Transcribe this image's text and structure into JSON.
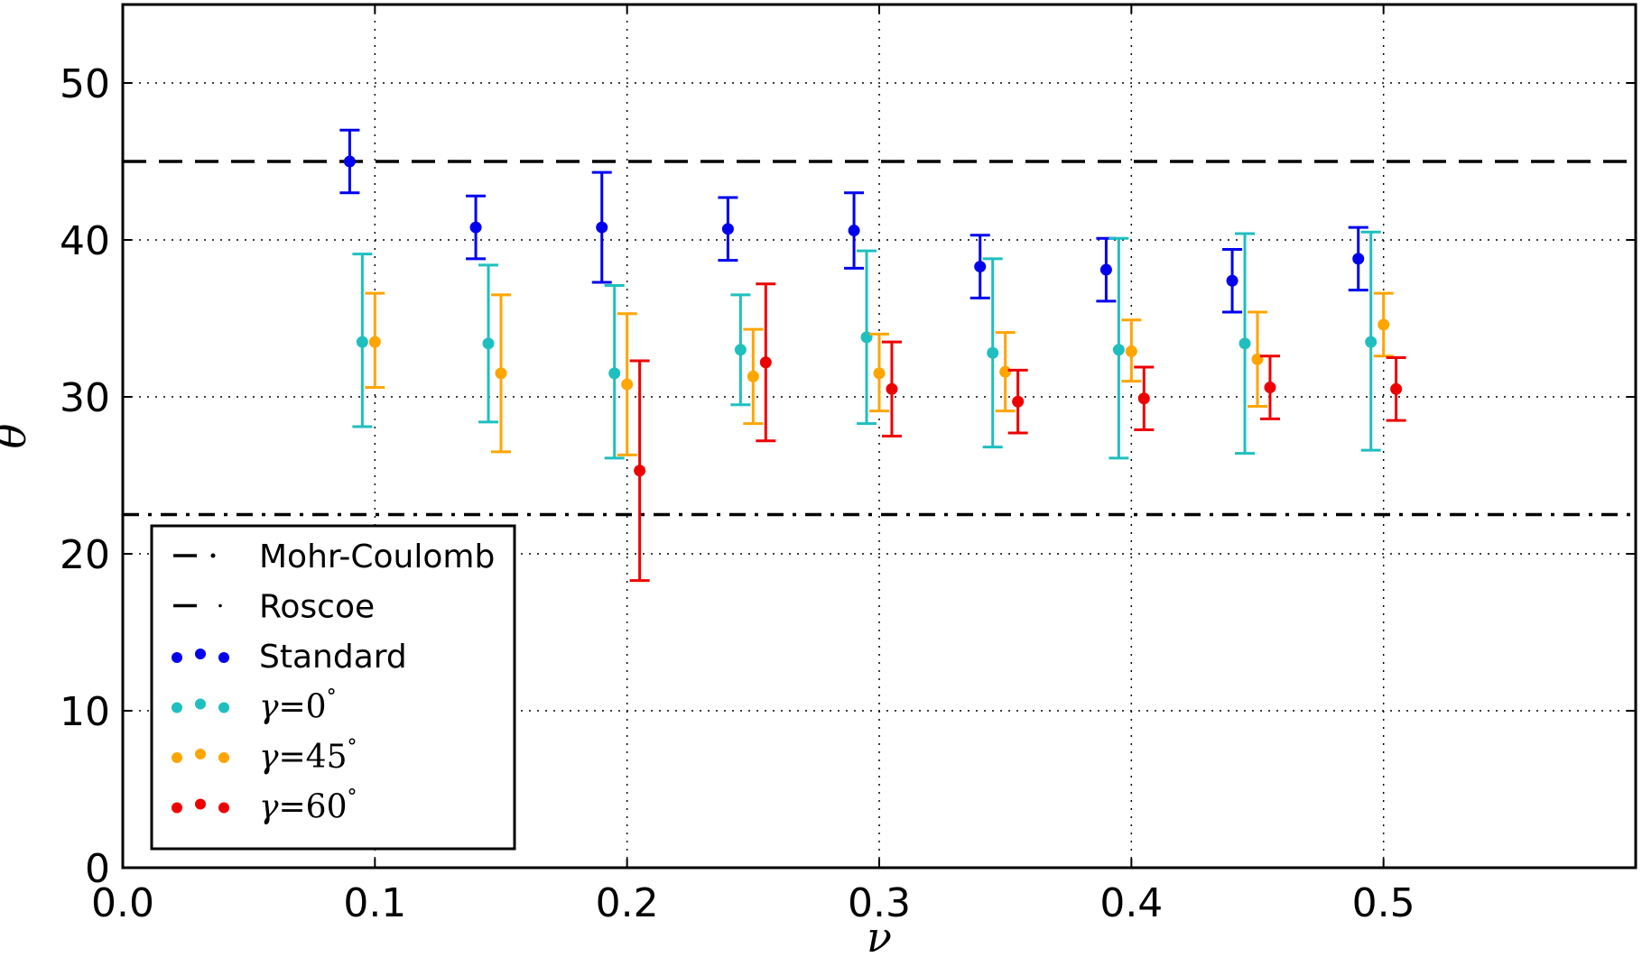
{
  "chart_data": {
    "type": "scatter",
    "xlabel": "ν",
    "ylabel": "θ",
    "xlim": [
      0.0,
      0.6
    ],
    "ylim": [
      0,
      55
    ],
    "xticks": [
      0.0,
      0.1,
      0.2,
      0.3,
      0.4,
      0.5
    ],
    "xtick_labels": [
      "0.0",
      "0.1",
      "0.2",
      "0.3",
      "0.4",
      "0.5"
    ],
    "yticks": [
      0,
      10,
      20,
      30,
      40,
      50
    ],
    "ytick_labels": [
      "0",
      "10",
      "20",
      "30",
      "40",
      "50"
    ],
    "grid": true,
    "legend_position": "lower-left",
    "reference_lines": [
      {
        "name": "Mohr-Coulomb",
        "y": 22.5,
        "style": "dash-dot",
        "color": "#000000"
      },
      {
        "name": "Roscoe",
        "y": 45.0,
        "style": "dashed",
        "color": "#000000"
      }
    ],
    "series": [
      {
        "name": "Standard",
        "color": "#0000ee",
        "x": [
          0.09,
          0.14,
          0.19,
          0.24,
          0.29,
          0.34,
          0.39,
          0.44,
          0.49
        ],
        "y": [
          45.0,
          40.8,
          40.8,
          40.7,
          40.6,
          38.3,
          38.1,
          37.4,
          38.8
        ],
        "err_low": [
          43.0,
          38.8,
          37.3,
          38.7,
          38.2,
          36.3,
          36.1,
          35.4,
          36.8
        ],
        "err_high": [
          47.0,
          42.8,
          44.3,
          42.7,
          43.0,
          40.3,
          40.1,
          39.4,
          40.8
        ]
      },
      {
        "name": "γ=0°",
        "color": "#1fbfbf",
        "x": [
          0.095,
          0.145,
          0.195,
          0.245,
          0.295,
          0.345,
          0.395,
          0.445,
          0.495
        ],
        "y": [
          33.5,
          33.4,
          31.5,
          33.0,
          33.8,
          32.8,
          33.0,
          33.4,
          33.5
        ],
        "err_low": [
          28.1,
          28.4,
          26.1,
          29.5,
          28.3,
          26.8,
          26.1,
          26.4,
          26.6
        ],
        "err_high": [
          39.1,
          38.4,
          37.1,
          36.5,
          39.3,
          38.8,
          40.1,
          40.4,
          40.5
        ]
      },
      {
        "name": "γ=45°",
        "color": "#ffa500",
        "x": [
          0.1,
          0.15,
          0.2,
          0.25,
          0.3,
          0.35,
          0.4,
          0.45,
          0.5
        ],
        "y": [
          33.5,
          31.5,
          30.8,
          31.3,
          31.5,
          31.6,
          32.9,
          32.4,
          34.6
        ],
        "err_low": [
          30.6,
          26.5,
          26.3,
          28.3,
          29.1,
          29.1,
          31.0,
          29.4,
          32.6
        ],
        "err_high": [
          36.6,
          36.5,
          35.3,
          34.3,
          34.0,
          34.1,
          34.9,
          35.4,
          36.6
        ]
      },
      {
        "name": "γ=60°",
        "color": "#ee0000",
        "x": [
          0.205,
          0.255,
          0.305,
          0.355,
          0.405,
          0.455,
          0.505
        ],
        "y": [
          25.3,
          32.2,
          30.5,
          29.7,
          29.9,
          30.6,
          30.5
        ],
        "err_low": [
          18.3,
          27.2,
          27.5,
          27.7,
          27.9,
          28.6,
          28.5
        ],
        "err_high": [
          32.3,
          37.2,
          33.5,
          31.7,
          31.9,
          32.6,
          32.5
        ]
      }
    ],
    "legend": [
      {
        "label": "Mohr-Coulomb",
        "kind": "line",
        "style": "dash-dot"
      },
      {
        "label": "Roscoe",
        "kind": "line",
        "style": "dashed"
      },
      {
        "label": "Standard",
        "kind": "marker",
        "color": "#0000ee"
      },
      {
        "label": "γ=0°",
        "kind": "marker",
        "color": "#1fbfbf",
        "math": {
          "sym": "γ",
          "val": "0"
        }
      },
      {
        "label": "γ=45°",
        "kind": "marker",
        "color": "#ffa500",
        "math": {
          "sym": "γ",
          "val": "45"
        }
      },
      {
        "label": "γ=60°",
        "kind": "marker",
        "color": "#ee0000",
        "math": {
          "sym": "γ",
          "val": "60"
        }
      }
    ]
  }
}
